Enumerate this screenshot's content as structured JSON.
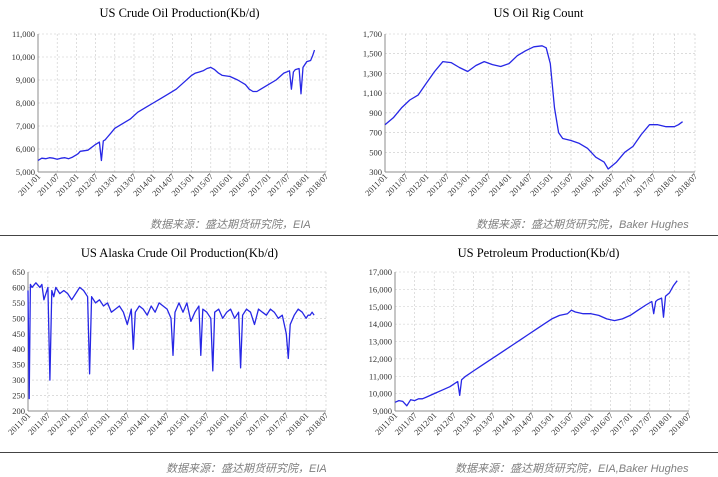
{
  "colors": {
    "series": "#2727e6",
    "grid": "#c8c8c8",
    "source_text": "#7f7f7f"
  },
  "chart_data": [
    {
      "type": "line",
      "title": "US Crude Oil Production(Kb/d)",
      "source": "数据来源：盛达期货研究院，EIA",
      "yticks": [
        5000,
        6000,
        7000,
        8000,
        9000,
        10000,
        11000
      ],
      "ytick_labels": [
        "5,000",
        "6,000",
        "7,000",
        "8,000",
        "9,000",
        "10,000",
        "11,000"
      ],
      "ylim": [
        5000,
        11000
      ],
      "xlim": [
        2011.0,
        2018.5
      ],
      "xtick_labels": [
        "2011/01",
        "2011/07",
        "2012/01",
        "2012/07",
        "2013/01",
        "2013/07",
        "2014/01",
        "2014/07",
        "2015/01",
        "2015/07",
        "2016/01",
        "2016/07",
        "2017/01",
        "2017/07",
        "2018/01",
        "2018/07"
      ],
      "grid": true,
      "series": [
        {
          "x": [
            2011.0,
            2011.05,
            2011.1,
            2011.2,
            2011.3,
            2011.4,
            2011.5,
            2011.6,
            2011.7,
            2011.8,
            2011.9,
            2012.0,
            2012.05,
            2012.1,
            2012.3,
            2012.5,
            2012.6,
            2012.65,
            2012.7,
            2012.75,
            2012.8,
            2012.9,
            2013.0,
            2013.2,
            2013.4,
            2013.6,
            2013.8,
            2014.0,
            2014.2,
            2014.4,
            2014.6,
            2014.8,
            2015.0,
            2015.1,
            2015.2,
            2015.3,
            2015.4,
            2015.5,
            2015.6,
            2015.7,
            2015.8,
            2016.0,
            2016.2,
            2016.4,
            2016.5,
            2016.6,
            2016.7,
            2016.8,
            2017.0,
            2017.2,
            2017.4,
            2017.55,
            2017.6,
            2017.65,
            2017.7,
            2017.8,
            2017.85,
            2017.9,
            2018.0,
            2018.1,
            2018.15,
            2018.2
          ],
          "values": [
            5500,
            5550,
            5600,
            5580,
            5620,
            5600,
            5550,
            5600,
            5620,
            5580,
            5650,
            5750,
            5800,
            5900,
            5950,
            6200,
            6300,
            5500,
            6350,
            6400,
            6500,
            6700,
            6900,
            7100,
            7300,
            7600,
            7800,
            8000,
            8200,
            8400,
            8600,
            8900,
            9200,
            9300,
            9350,
            9400,
            9500,
            9550,
            9450,
            9300,
            9200,
            9150,
            9000,
            8800,
            8600,
            8500,
            8500,
            8600,
            8800,
            9000,
            9300,
            9400,
            8600,
            9350,
            9450,
            9500,
            8400,
            9550,
            9800,
            9850,
            10050,
            10300
          ]
        }
      ]
    },
    {
      "type": "line",
      "title": "US Oil Rig Count",
      "source": "数据来源：盛达期货研究院，Baker Hughes",
      "yticks": [
        300,
        500,
        700,
        900,
        1100,
        1300,
        1500,
        1700
      ],
      "ytick_labels": [
        "300",
        "500",
        "700",
        "900",
        "1,100",
        "1,300",
        "1,500",
        "1,700"
      ],
      "ylim": [
        300,
        1700
      ],
      "xlim": [
        2011.0,
        2018.5
      ],
      "xtick_labels": [
        "2011/01",
        "2011/07",
        "2012/01",
        "2012/07",
        "2013/01",
        "2013/07",
        "2014/01",
        "2014/07",
        "2015/01",
        "2015/07",
        "2016/01",
        "2016/07",
        "2017/01",
        "2017/07",
        "2018/01",
        "2018/07"
      ],
      "grid": true,
      "series": [
        {
          "x": [
            2011.0,
            2011.2,
            2011.4,
            2011.6,
            2011.8,
            2012.0,
            2012.2,
            2012.4,
            2012.6,
            2012.8,
            2013.0,
            2013.2,
            2013.4,
            2013.6,
            2013.8,
            2014.0,
            2014.2,
            2014.4,
            2014.6,
            2014.8,
            2014.9,
            2015.0,
            2015.1,
            2015.2,
            2015.3,
            2015.5,
            2015.7,
            2015.9,
            2016.1,
            2016.3,
            2016.4,
            2016.6,
            2016.8,
            2017.0,
            2017.2,
            2017.4,
            2017.6,
            2017.8,
            2018.0,
            2018.1,
            2018.2
          ],
          "values": [
            780,
            850,
            950,
            1030,
            1080,
            1200,
            1320,
            1420,
            1410,
            1360,
            1320,
            1380,
            1420,
            1390,
            1370,
            1400,
            1480,
            1530,
            1570,
            1580,
            1560,
            1400,
            950,
            700,
            640,
            620,
            590,
            540,
            450,
            400,
            330,
            400,
            500,
            560,
            680,
            780,
            780,
            760,
            760,
            780,
            810
          ]
        }
      ]
    },
    {
      "type": "line",
      "title": "US Alaska Crude Oil Production(Kb/d)",
      "source": "数据来源：盛达期货研究院，EIA",
      "yticks": [
        200,
        250,
        300,
        350,
        400,
        450,
        500,
        550,
        600,
        650
      ],
      "ytick_labels": [
        "200",
        "250",
        "300",
        "350",
        "400",
        "450",
        "500",
        "550",
        "600",
        "650"
      ],
      "ylim": [
        200,
        650
      ],
      "xlim": [
        2011.0,
        2018.5
      ],
      "xtick_labels": [
        "2011/01",
        "2011/07",
        "2012/01",
        "2012/07",
        "2013/01",
        "2013/07",
        "2014/01",
        "2014/07",
        "2015/01",
        "2015/07",
        "2016/01",
        "2016/07",
        "2017/01",
        "2017/07",
        "2018/01",
        "2018/07"
      ],
      "grid": true,
      "series": [
        {
          "x": [
            2011.0,
            2011.03,
            2011.06,
            2011.1,
            2011.2,
            2011.3,
            2011.35,
            2011.4,
            2011.5,
            2011.55,
            2011.6,
            2011.65,
            2011.7,
            2011.8,
            2011.9,
            2012.0,
            2012.1,
            2012.2,
            2012.3,
            2012.4,
            2012.5,
            2012.55,
            2012.6,
            2012.7,
            2012.8,
            2012.9,
            2013.0,
            2013.1,
            2013.2,
            2013.3,
            2013.4,
            2013.5,
            2013.6,
            2013.65,
            2013.7,
            2013.8,
            2013.9,
            2014.0,
            2014.1,
            2014.2,
            2014.3,
            2014.4,
            2014.5,
            2014.6,
            2014.65,
            2014.7,
            2014.8,
            2014.9,
            2015.0,
            2015.1,
            2015.2,
            2015.3,
            2015.35,
            2015.4,
            2015.5,
            2015.6,
            2015.65,
            2015.7,
            2015.8,
            2015.9,
            2016.0,
            2016.1,
            2016.2,
            2016.3,
            2016.35,
            2016.4,
            2016.5,
            2016.6,
            2016.7,
            2016.8,
            2016.9,
            2017.0,
            2017.1,
            2017.2,
            2017.3,
            2017.4,
            2017.5,
            2017.55,
            2017.6,
            2017.7,
            2017.8,
            2017.9,
            2018.0,
            2018.05,
            2018.1,
            2018.15,
            2018.2
          ],
          "values": [
            590,
            240,
            610,
            600,
            615,
            600,
            610,
            560,
            600,
            300,
            590,
            570,
            600,
            580,
            590,
            580,
            560,
            580,
            600,
            590,
            570,
            320,
            570,
            550,
            560,
            540,
            550,
            520,
            530,
            540,
            520,
            480,
            530,
            400,
            520,
            540,
            530,
            510,
            540,
            520,
            550,
            540,
            530,
            500,
            380,
            520,
            550,
            520,
            550,
            490,
            520,
            540,
            380,
            530,
            520,
            500,
            330,
            520,
            530,
            500,
            520,
            530,
            500,
            520,
            340,
            510,
            530,
            520,
            480,
            530,
            520,
            510,
            530,
            520,
            500,
            510,
            450,
            370,
            480,
            510,
            530,
            520,
            500,
            510,
            510,
            520,
            510
          ]
        }
      ]
    },
    {
      "type": "line",
      "title": "US Petroleum Production(Kb/d)",
      "source": "数据来源：盛达期货研究院，EIA,Baker Hughes",
      "yticks": [
        9000,
        10000,
        11000,
        12000,
        13000,
        14000,
        15000,
        16000,
        17000
      ],
      "ytick_labels": [
        "9,000",
        "10,000",
        "11,000",
        "12,000",
        "13,000",
        "14,000",
        "15,000",
        "16,000",
        "17,000"
      ],
      "ylim": [
        9000,
        17000
      ],
      "xlim": [
        2011.0,
        2018.5
      ],
      "xtick_labels": [
        "2011/01",
        "2011/07",
        "2012/01",
        "2012/07",
        "2013/01",
        "2013/07",
        "2014/01",
        "2014/07",
        "2015/01",
        "2015/07",
        "2016/01",
        "2016/07",
        "2017/01",
        "2017/07",
        "2018/01",
        "2018/07"
      ],
      "grid": true,
      "series": [
        {
          "x": [
            2011.0,
            2011.1,
            2011.2,
            2011.3,
            2011.4,
            2011.5,
            2011.6,
            2011.7,
            2011.8,
            2012.0,
            2012.2,
            2012.4,
            2012.6,
            2012.65,
            2012.7,
            2012.8,
            2013.0,
            2013.2,
            2013.4,
            2013.6,
            2013.8,
            2014.0,
            2014.2,
            2014.4,
            2014.6,
            2014.8,
            2015.0,
            2015.2,
            2015.4,
            2015.5,
            2015.6,
            2015.8,
            2016.0,
            2016.2,
            2016.4,
            2016.6,
            2016.8,
            2017.0,
            2017.2,
            2017.4,
            2017.55,
            2017.6,
            2017.65,
            2017.7,
            2017.8,
            2017.85,
            2017.9,
            2018.0,
            2018.1,
            2018.2
          ],
          "values": [
            9500,
            9600,
            9550,
            9300,
            9650,
            9600,
            9700,
            9700,
            9800,
            10000,
            10200,
            10400,
            10700,
            9900,
            10800,
            11000,
            11300,
            11600,
            11900,
            12200,
            12500,
            12800,
            13100,
            13400,
            13700,
            14000,
            14300,
            14500,
            14600,
            14800,
            14700,
            14600,
            14600,
            14500,
            14300,
            14200,
            14300,
            14500,
            14800,
            15100,
            15300,
            14600,
            15300,
            15400,
            15500,
            14400,
            15600,
            15800,
            16200,
            16500
          ]
        }
      ]
    }
  ]
}
